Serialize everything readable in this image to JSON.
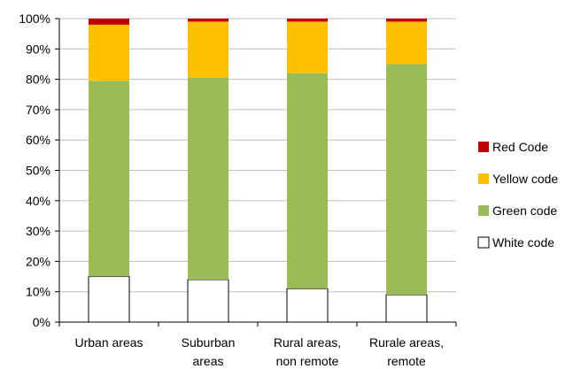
{
  "chart_data": {
    "type": "bar",
    "stacked": true,
    "normalized": true,
    "categories": [
      [
        "Urban areas"
      ],
      [
        "Suburban",
        "areas"
      ],
      [
        "Rural areas,",
        "non remote"
      ],
      [
        "Rurale areas,",
        "remote"
      ]
    ],
    "series": [
      {
        "name": "White code",
        "color": "#ffffff",
        "values": [
          0.15,
          0.14,
          0.11,
          0.09
        ]
      },
      {
        "name": "Green code",
        "color": "#9bbb59",
        "values": [
          0.645,
          0.665,
          0.71,
          0.76
        ]
      },
      {
        "name": "Yellow code",
        "color": "#ffc000",
        "values": [
          0.185,
          0.185,
          0.17,
          0.14
        ]
      },
      {
        "name": "Red Code",
        "color": "#c00000",
        "values": [
          0.02,
          0.01,
          0.01,
          0.01
        ]
      }
    ],
    "ylim": [
      0,
      1
    ],
    "yticks": [
      "0%",
      "10%",
      "20%",
      "30%",
      "40%",
      "50%",
      "60%",
      "70%",
      "80%",
      "90%",
      "100%"
    ],
    "legend_order": [
      "Red Code",
      "Yellow code",
      "Green code",
      "White code"
    ],
    "legend_position": "right",
    "grid": "horizontal"
  }
}
